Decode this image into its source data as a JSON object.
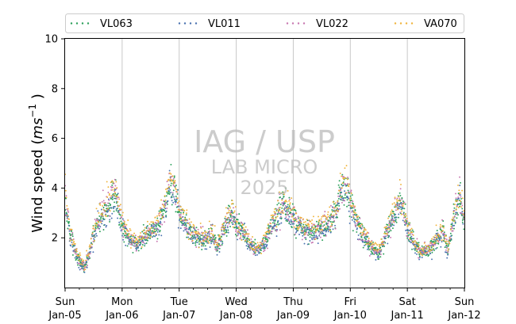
{
  "chart_data": {
    "type": "scatter",
    "title": "",
    "xlabel": "",
    "ylabel_main": "Wind speed (",
    "ylabel_unit": "ms",
    "ylabel_exp": "−1",
    "ylabel_close": " )",
    "x_range": [
      "2025-01-05T00:00",
      "2025-01-12T00:00"
    ],
    "x_ticks": [
      {
        "date": "2025-01-05",
        "day": "Sun",
        "label": "Jan-05"
      },
      {
        "date": "2025-01-06",
        "day": "Mon",
        "label": "Jan-06"
      },
      {
        "date": "2025-01-07",
        "day": "Tue",
        "label": "Jan-07"
      },
      {
        "date": "2025-01-08",
        "day": "Wed",
        "label": "Jan-08"
      },
      {
        "date": "2025-01-09",
        "day": "Thu",
        "label": "Jan-09"
      },
      {
        "date": "2025-01-10",
        "day": "Fri",
        "label": "Jan-10"
      },
      {
        "date": "2025-01-11",
        "day": "Sat",
        "label": "Jan-11"
      },
      {
        "date": "2025-01-12",
        "day": "Sun",
        "label": "Jan-12"
      }
    ],
    "ylim": [
      0,
      10
    ],
    "y_ticks": [
      2,
      4,
      6,
      8,
      10
    ],
    "grid": "vertical at day boundaries",
    "legend_position": "top",
    "watermark": {
      "line1": "IAG / USP",
      "line2": "LAB MICRO",
      "line3": "2025"
    },
    "daily_profile": [
      {
        "time": "2025-01-05T00:00",
        "value": 3.5
      },
      {
        "time": "2025-01-05T02:00",
        "value": 2.2
      },
      {
        "time": "2025-01-05T05:00",
        "value": 1.2
      },
      {
        "time": "2025-01-05T08:00",
        "value": 0.8
      },
      {
        "time": "2025-01-05T10:00",
        "value": 1.3
      },
      {
        "time": "2025-01-05T13:00",
        "value": 2.5
      },
      {
        "time": "2025-01-05T16:00",
        "value": 3.0
      },
      {
        "time": "2025-01-05T19:00",
        "value": 3.3
      },
      {
        "time": "2025-01-05T21:00",
        "value": 3.9
      },
      {
        "time": "2025-01-06T00:00",
        "value": 2.4
      },
      {
        "time": "2025-01-06T03:00",
        "value": 2.0
      },
      {
        "time": "2025-01-06T06:00",
        "value": 1.7
      },
      {
        "time": "2025-01-06T09:00",
        "value": 2.0
      },
      {
        "time": "2025-01-06T12:00",
        "value": 2.3
      },
      {
        "time": "2025-01-06T15:00",
        "value": 2.5
      },
      {
        "time": "2025-01-06T18:00",
        "value": 3.2
      },
      {
        "time": "2025-01-06T20:00",
        "value": 4.2
      },
      {
        "time": "2025-01-06T22:00",
        "value": 3.9
      },
      {
        "time": "2025-01-07T00:00",
        "value": 3.1
      },
      {
        "time": "2025-01-07T03:00",
        "value": 2.5
      },
      {
        "time": "2025-01-07T06:00",
        "value": 2.1
      },
      {
        "time": "2025-01-07T09:00",
        "value": 2.0
      },
      {
        "time": "2025-01-07T11:00",
        "value": 1.9
      },
      {
        "time": "2025-01-07T14:00",
        "value": 2.2
      },
      {
        "time": "2025-01-07T16:00",
        "value": 1.6
      },
      {
        "time": "2025-01-07T19:00",
        "value": 2.4
      },
      {
        "time": "2025-01-07T22:00",
        "value": 3.0
      },
      {
        "time": "2025-01-08T00:00",
        "value": 2.5
      },
      {
        "time": "2025-01-08T03:00",
        "value": 2.2
      },
      {
        "time": "2025-01-08T06:00",
        "value": 1.7
      },
      {
        "time": "2025-01-08T09:00",
        "value": 1.5
      },
      {
        "time": "2025-01-08T12:00",
        "value": 1.8
      },
      {
        "time": "2025-01-08T15:00",
        "value": 2.5
      },
      {
        "time": "2025-01-08T18:00",
        "value": 3.0
      },
      {
        "time": "2025-01-08T20:00",
        "value": 3.4
      },
      {
        "time": "2025-01-08T22:00",
        "value": 3.0
      },
      {
        "time": "2025-01-09T00:00",
        "value": 2.8
      },
      {
        "time": "2025-01-09T03:00",
        "value": 2.4
      },
      {
        "time": "2025-01-09T06:00",
        "value": 2.2
      },
      {
        "time": "2025-01-09T09:00",
        "value": 2.2
      },
      {
        "time": "2025-01-09T12:00",
        "value": 2.4
      },
      {
        "time": "2025-01-09T15:00",
        "value": 2.5
      },
      {
        "time": "2025-01-09T18:00",
        "value": 3.0
      },
      {
        "time": "2025-01-09T20:00",
        "value": 3.8
      },
      {
        "time": "2025-01-09T22:00",
        "value": 4.1
      },
      {
        "time": "2025-01-10T00:00",
        "value": 3.4
      },
      {
        "time": "2025-01-10T03:00",
        "value": 2.5
      },
      {
        "time": "2025-01-10T06:00",
        "value": 2.0
      },
      {
        "time": "2025-01-10T09:00",
        "value": 1.6
      },
      {
        "time": "2025-01-10T12:00",
        "value": 1.4
      },
      {
        "time": "2025-01-10T15:00",
        "value": 2.1
      },
      {
        "time": "2025-01-10T18:00",
        "value": 2.7
      },
      {
        "time": "2025-01-10T21:00",
        "value": 3.6
      },
      {
        "time": "2025-01-11T00:00",
        "value": 2.4
      },
      {
        "time": "2025-01-11T03:00",
        "value": 1.7
      },
      {
        "time": "2025-01-11T06:00",
        "value": 1.4
      },
      {
        "time": "2025-01-11T09:00",
        "value": 1.5
      },
      {
        "time": "2025-01-11T12:00",
        "value": 1.9
      },
      {
        "time": "2025-01-11T15:00",
        "value": 2.2
      },
      {
        "time": "2025-01-11T17:00",
        "value": 1.5
      },
      {
        "time": "2025-01-11T20:00",
        "value": 3.0
      },
      {
        "time": "2025-01-11T22:00",
        "value": 3.6
      },
      {
        "time": "2025-01-12T00:00",
        "value": 2.7
      }
    ],
    "series": [
      {
        "name": "VL063",
        "color": "#2ca05a",
        "amp": 1.0
      },
      {
        "name": "VL011",
        "color": "#4a72b0",
        "amp": 0.95
      },
      {
        "name": "VL022",
        "color": "#c777b0",
        "amp": 1.02
      },
      {
        "name": "VA070",
        "color": "#f0b43c",
        "amp": 1.07
      }
    ]
  }
}
